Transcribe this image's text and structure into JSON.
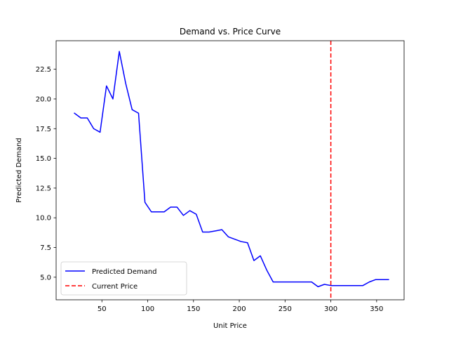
{
  "chart_data": {
    "type": "line",
    "title": "Demand vs. Price Curve",
    "xlabel": "Unit Price",
    "ylabel": "Predicted Demand",
    "xlim": [
      0,
      380
    ],
    "ylim": [
      3.1,
      24.9
    ],
    "xticks": [
      50,
      100,
      150,
      200,
      250,
      300,
      350
    ],
    "xtick_labels": [
      "50",
      "100",
      "150",
      "200",
      "250",
      "300",
      "350"
    ],
    "yticks": [
      5.0,
      7.5,
      10.0,
      12.5,
      15.0,
      17.5,
      20.0,
      22.5
    ],
    "ytick_labels": [
      "5.0",
      "7.5",
      "10.0",
      "12.5",
      "15.0",
      "17.5",
      "20.0",
      "22.5"
    ],
    "grid": false,
    "legend_position": "lower-left",
    "series": [
      {
        "name": "Predicted Demand",
        "color": "#0000ff",
        "style": "solid",
        "x": [
          20,
          27,
          34,
          41,
          48,
          55,
          62,
          69,
          76,
          83,
          90,
          97,
          104,
          111,
          118,
          125,
          132,
          139,
          146,
          153,
          160,
          167,
          174,
          181,
          188,
          195,
          202,
          209,
          216,
          223,
          230,
          237,
          244,
          251,
          258,
          265,
          272,
          279,
          286,
          293,
          300,
          307,
          314,
          321,
          328,
          335,
          342,
          349,
          356,
          363
        ],
        "y": [
          18.8,
          18.4,
          18.4,
          17.5,
          17.2,
          21.1,
          20.0,
          24.0,
          21.3,
          19.1,
          18.8,
          11.3,
          10.5,
          10.5,
          10.5,
          10.9,
          10.9,
          10.2,
          10.6,
          10.3,
          8.8,
          8.8,
          8.9,
          9.0,
          8.4,
          8.2,
          8.0,
          7.9,
          6.4,
          6.8,
          5.6,
          4.6,
          4.6,
          4.6,
          4.6,
          4.6,
          4.6,
          4.6,
          4.2,
          4.4,
          4.3,
          4.3,
          4.3,
          4.3,
          4.3,
          4.3,
          4.6,
          4.8,
          4.8,
          4.8
        ]
      }
    ],
    "reference_lines": [
      {
        "name": "Current Price",
        "orientation": "vertical",
        "x": 300,
        "color": "#ff0000",
        "style": "dashed"
      }
    ]
  }
}
